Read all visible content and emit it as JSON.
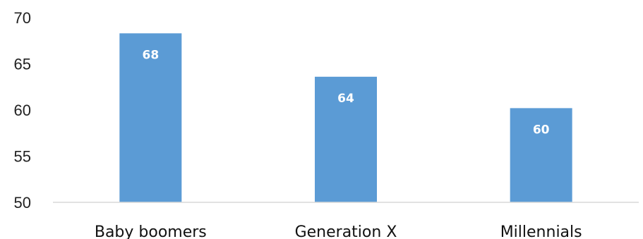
{
  "chart_data": {
    "type": "bar",
    "categories": [
      "Baby boomers",
      "Generation X",
      "Millennials"
    ],
    "values": [
      68.3,
      63.6,
      60.2
    ],
    "data_labels": [
      "68",
      "64",
      "60"
    ],
    "title": "",
    "xlabel": "",
    "ylabel": "",
    "ylim": [
      50,
      70
    ],
    "yticks": [
      50,
      55,
      60,
      65,
      70
    ],
    "grid": false,
    "legend": "none",
    "bar_color": "#5b9bd5"
  }
}
